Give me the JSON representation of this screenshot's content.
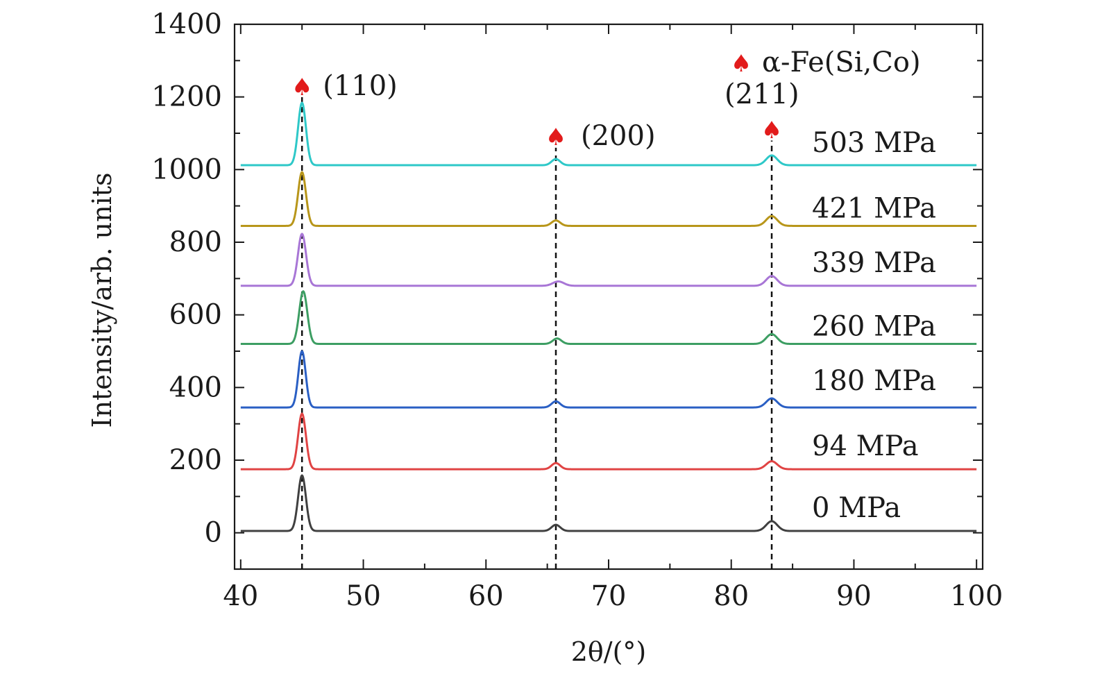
{
  "chart_data": {
    "type": "line",
    "xlabel": "2θ/(°)",
    "ylabel": "Intensity/arb. units",
    "xlim": [
      39.5,
      100.5
    ],
    "ylim": [
      -100,
      1400
    ],
    "x_ticks": [
      40,
      50,
      60,
      70,
      80,
      90,
      100
    ],
    "y_ticks": [
      0,
      200,
      400,
      600,
      800,
      1000,
      1200,
      1400
    ],
    "grid": false,
    "series": [
      {
        "name": "0 MPa",
        "color": "#404040",
        "baseline": 5,
        "peaks": [
          {
            "x": 45.0,
            "height": 153,
            "width": 0.32
          },
          {
            "x": 65.7,
            "height": 17,
            "width": 0.35
          },
          {
            "x": 83.3,
            "height": 27,
            "width": 0.45
          }
        ]
      },
      {
        "name": "94 MPa",
        "color": "#e04343",
        "baseline": 175,
        "peaks": [
          {
            "x": 45.0,
            "height": 153,
            "width": 0.32
          },
          {
            "x": 65.7,
            "height": 17,
            "width": 0.35
          },
          {
            "x": 83.3,
            "height": 22,
            "width": 0.45
          }
        ]
      },
      {
        "name": "180 MPa",
        "color": "#2a5fc4",
        "baseline": 345,
        "peaks": [
          {
            "x": 45.0,
            "height": 155,
            "width": 0.3
          },
          {
            "x": 65.7,
            "height": 17,
            "width": 0.35
          },
          {
            "x": 83.3,
            "height": 25,
            "width": 0.45
          }
        ]
      },
      {
        "name": "260 MPa",
        "color": "#3d9e63",
        "baseline": 520,
        "peaks": [
          {
            "x": 45.1,
            "height": 145,
            "width": 0.33
          },
          {
            "x": 65.8,
            "height": 15,
            "width": 0.35
          },
          {
            "x": 83.3,
            "height": 27,
            "width": 0.45
          }
        ]
      },
      {
        "name": "339 MPa",
        "color": "#a876d6",
        "baseline": 680,
        "peaks": [
          {
            "x": 45.0,
            "height": 143,
            "width": 0.33
          },
          {
            "x": 65.9,
            "height": 12,
            "width": 0.45
          },
          {
            "x": 83.3,
            "height": 27,
            "width": 0.45
          }
        ]
      },
      {
        "name": "421 MPa",
        "color": "#b8961a",
        "baseline": 845,
        "peaks": [
          {
            "x": 45.0,
            "height": 148,
            "width": 0.32
          },
          {
            "x": 65.7,
            "height": 15,
            "width": 0.35
          },
          {
            "x": 83.3,
            "height": 27,
            "width": 0.45
          }
        ]
      },
      {
        "name": "503 MPa",
        "color": "#2ec8c8",
        "baseline": 1012,
        "peaks": [
          {
            "x": 45.0,
            "height": 172,
            "width": 0.32
          },
          {
            "x": 65.7,
            "height": 17,
            "width": 0.35
          },
          {
            "x": 83.3,
            "height": 27,
            "width": 0.45
          }
        ]
      }
    ],
    "series_labels": [
      {
        "text": "0 MPa",
        "y": 70
      },
      {
        "text": "94 MPa",
        "y": 240
      },
      {
        "text": "180 MPa",
        "y": 420
      },
      {
        "text": "260 MPa",
        "y": 570
      },
      {
        "text": "339 MPa",
        "y": 745
      },
      {
        "text": "421 MPa",
        "y": 895
      },
      {
        "text": "503 MPa",
        "y": 1075
      }
    ],
    "reference_lines": [
      {
        "x": 45.0,
        "y_top": 1200,
        "label": "(110)",
        "marker_y": 1228
      },
      {
        "x": 65.7,
        "y_top": 1060,
        "label": "(200)",
        "marker_y": 1090
      },
      {
        "x": 83.3,
        "y_top": 1080,
        "label": "(211)",
        "marker_y": 1110
      }
    ],
    "legend": {
      "marker": "♠",
      "text": "α-Fe(Si,Co)",
      "marker_color": "#e21b1b",
      "position": "top-right"
    }
  }
}
